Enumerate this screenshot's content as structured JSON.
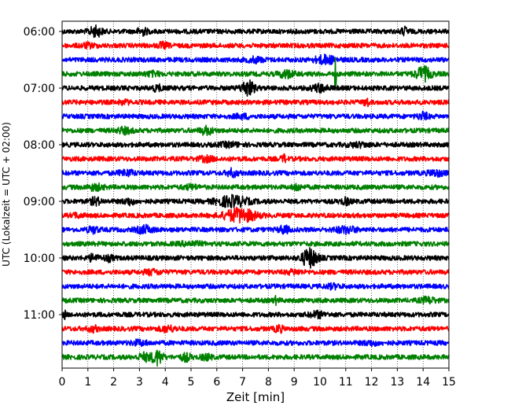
{
  "chart_data": {
    "type": "line",
    "title": "",
    "xlabel": "Zeit  [min]",
    "ylabel": "UTC (Lokalzeit = UTC + 02:00)",
    "xlim": [
      0,
      15
    ],
    "x_ticks": [
      "0",
      "1",
      "2",
      "3",
      "4",
      "5",
      "6",
      "7",
      "8",
      "9",
      "10",
      "11",
      "12",
      "13",
      "14",
      "15"
    ],
    "y_ticks": [
      "06:00",
      "07:00",
      "08:00",
      "09:00",
      "10:00",
      "11:00"
    ],
    "grid": "vertical dotted",
    "series_colors": [
      "#000000",
      "#ff0000",
      "#0000ff",
      "#008000"
    ],
    "traces": [
      {
        "start": "06:00",
        "color": "#000000",
        "amp": 3.0,
        "events": [
          [
            1.3,
            5.5,
            0.25
          ],
          [
            3.1,
            4.0,
            0.2
          ],
          [
            13.3,
            4.0,
            0.15
          ]
        ]
      },
      {
        "start": "06:15",
        "color": "#ff0000",
        "amp": 3.0,
        "events": [
          [
            3.9,
            3.0,
            0.2
          ],
          [
            1.0,
            2.0,
            0.3
          ]
        ]
      },
      {
        "start": "06:30",
        "color": "#0000ff",
        "amp": 3.0,
        "events": [
          [
            10.2,
            4.5,
            0.4
          ],
          [
            7.5,
            2.5,
            0.3
          ]
        ]
      },
      {
        "start": "06:45",
        "color": "#008000",
        "amp": 3.0,
        "events": [
          [
            10.6,
            20.0,
            0.04
          ],
          [
            8.7,
            4.0,
            0.3
          ],
          [
            14.0,
            8.0,
            0.3
          ],
          [
            3.5,
            2.0,
            0.3
          ]
        ]
      },
      {
        "start": "07:00",
        "color": "#000000",
        "amp": 3.0,
        "events": [
          [
            7.2,
            9.0,
            0.25
          ],
          [
            10.0,
            4.0,
            0.3
          ],
          [
            3.7,
            3.0,
            0.2
          ]
        ]
      },
      {
        "start": "07:15",
        "color": "#ff0000",
        "amp": 3.0,
        "events": [
          [
            11.8,
            5.0,
            0.1
          ],
          [
            2.4,
            2.0,
            0.2
          ]
        ]
      },
      {
        "start": "07:30",
        "color": "#0000ff",
        "amp": 3.0,
        "events": [
          [
            14.0,
            4.0,
            0.2
          ],
          [
            7.0,
            2.0,
            0.3
          ]
        ]
      },
      {
        "start": "07:45",
        "color": "#008000",
        "amp": 3.0,
        "events": [
          [
            5.6,
            4.0,
            0.25
          ],
          [
            2.4,
            3.0,
            0.3
          ]
        ]
      },
      {
        "start": "08:00",
        "color": "#000000",
        "amp": 3.0,
        "events": [
          [
            6.5,
            2.0,
            0.4
          ],
          [
            11.5,
            2.0,
            0.4
          ]
        ]
      },
      {
        "start": "08:15",
        "color": "#ff0000",
        "amp": 3.0,
        "events": [
          [
            8.6,
            4.0,
            0.1
          ],
          [
            5.6,
            2.5,
            0.3
          ]
        ]
      },
      {
        "start": "08:30",
        "color": "#0000ff",
        "amp": 3.0,
        "events": [
          [
            6.6,
            4.0,
            0.2
          ],
          [
            2.5,
            3.0,
            0.3
          ],
          [
            14.5,
            3.0,
            0.3
          ]
        ]
      },
      {
        "start": "08:45",
        "color": "#008000",
        "amp": 3.0,
        "events": [
          [
            9.1,
            4.0,
            0.15
          ],
          [
            1.3,
            3.0,
            0.3
          ],
          [
            5.0,
            2.0,
            0.3
          ]
        ]
      },
      {
        "start": "09:00",
        "color": "#000000",
        "amp": 3.0,
        "events": [
          [
            6.6,
            6.0,
            0.6
          ],
          [
            1.3,
            4.0,
            0.2
          ],
          [
            2.6,
            3.5,
            0.2
          ],
          [
            11.0,
            3.0,
            0.2
          ]
        ]
      },
      {
        "start": "09:15",
        "color": "#ff0000",
        "amp": 3.0,
        "events": [
          [
            6.9,
            8.0,
            0.6
          ],
          [
            0.6,
            2.0,
            0.2
          ]
        ]
      },
      {
        "start": "09:30",
        "color": "#0000ff",
        "amp": 3.0,
        "events": [
          [
            3.2,
            4.0,
            0.3
          ],
          [
            8.6,
            4.0,
            0.2
          ],
          [
            11.0,
            3.5,
            0.4
          ],
          [
            1.2,
            3.5,
            0.2
          ]
        ]
      },
      {
        "start": "09:45",
        "color": "#008000",
        "amp": 3.0,
        "events": [
          [
            5.0,
            2.0,
            0.4
          ]
        ]
      },
      {
        "start": "10:00",
        "color": "#000000",
        "amp": 3.0,
        "events": [
          [
            9.6,
            11.0,
            0.3
          ],
          [
            1.2,
            3.5,
            0.2
          ],
          [
            1.8,
            3.0,
            0.2
          ]
        ]
      },
      {
        "start": "10:15",
        "color": "#ff0000",
        "amp": 3.0,
        "events": [
          [
            3.5,
            2.5,
            0.3
          ],
          [
            9.0,
            2.0,
            0.3
          ]
        ]
      },
      {
        "start": "10:30",
        "color": "#0000ff",
        "amp": 3.0,
        "events": [
          [
            10.5,
            2.0,
            0.3
          ]
        ]
      },
      {
        "start": "10:45",
        "color": "#008000",
        "amp": 3.0,
        "events": [
          [
            8.3,
            3.5,
            0.1
          ],
          [
            14.2,
            3.0,
            0.3
          ]
        ]
      },
      {
        "start": "11:00",
        "color": "#000000",
        "amp": 3.0,
        "events": [
          [
            0.1,
            4.0,
            0.05
          ],
          [
            9.9,
            3.0,
            0.3
          ]
        ]
      },
      {
        "start": "11:15",
        "color": "#ff0000",
        "amp": 3.0,
        "events": [
          [
            8.4,
            4.0,
            0.15
          ],
          [
            1.2,
            3.0,
            0.2
          ],
          [
            4.1,
            3.0,
            0.3
          ]
        ]
      },
      {
        "start": "11:30",
        "color": "#0000ff",
        "amp": 3.0,
        "events": [
          [
            3.0,
            2.5,
            0.3
          ],
          [
            12.0,
            2.0,
            0.3
          ]
        ]
      },
      {
        "start": "11:45",
        "color": "#008000",
        "amp": 3.0,
        "events": [
          [
            3.7,
            9.0,
            0.2
          ],
          [
            3.2,
            4.0,
            0.25
          ],
          [
            4.8,
            4.0,
            0.2
          ],
          [
            5.6,
            3.0,
            0.2
          ]
        ]
      }
    ]
  }
}
